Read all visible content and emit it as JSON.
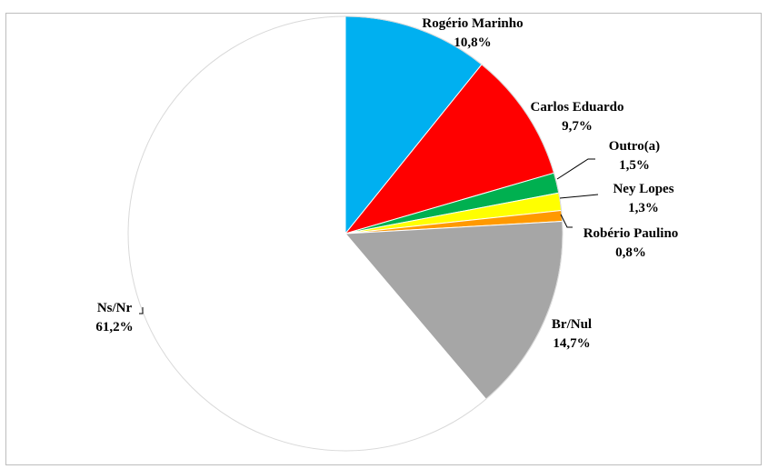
{
  "chart_data": {
    "type": "pie",
    "slices": [
      {
        "label": "Rogério Marinho",
        "value_label": "10,8%",
        "value": 10.8,
        "color": "#00b0f0"
      },
      {
        "label": "Carlos Eduardo",
        "value_label": "9,7%",
        "value": 9.7,
        "color": "#ff0000"
      },
      {
        "label": "Outro(a)",
        "value_label": "1,5%",
        "value": 1.5,
        "color": "#00b050"
      },
      {
        "label": "Ney Lopes",
        "value_label": "1,3%",
        "value": 1.3,
        "color": "#ffff00"
      },
      {
        "label": "Robério Paulino",
        "value_label": "0,8%",
        "value": 0.8,
        "color": "#ff9900"
      },
      {
        "label": "Br/Nul",
        "value_label": "14,7%",
        "value": 14.7,
        "color": "#a6a6a6"
      },
      {
        "label": "Ns/Nr",
        "value_label": "61,2%",
        "value": 61.2,
        "color": "#ffffff"
      }
    ],
    "start_angle": "12 o'clock",
    "direction": "clockwise",
    "legend": "none"
  }
}
